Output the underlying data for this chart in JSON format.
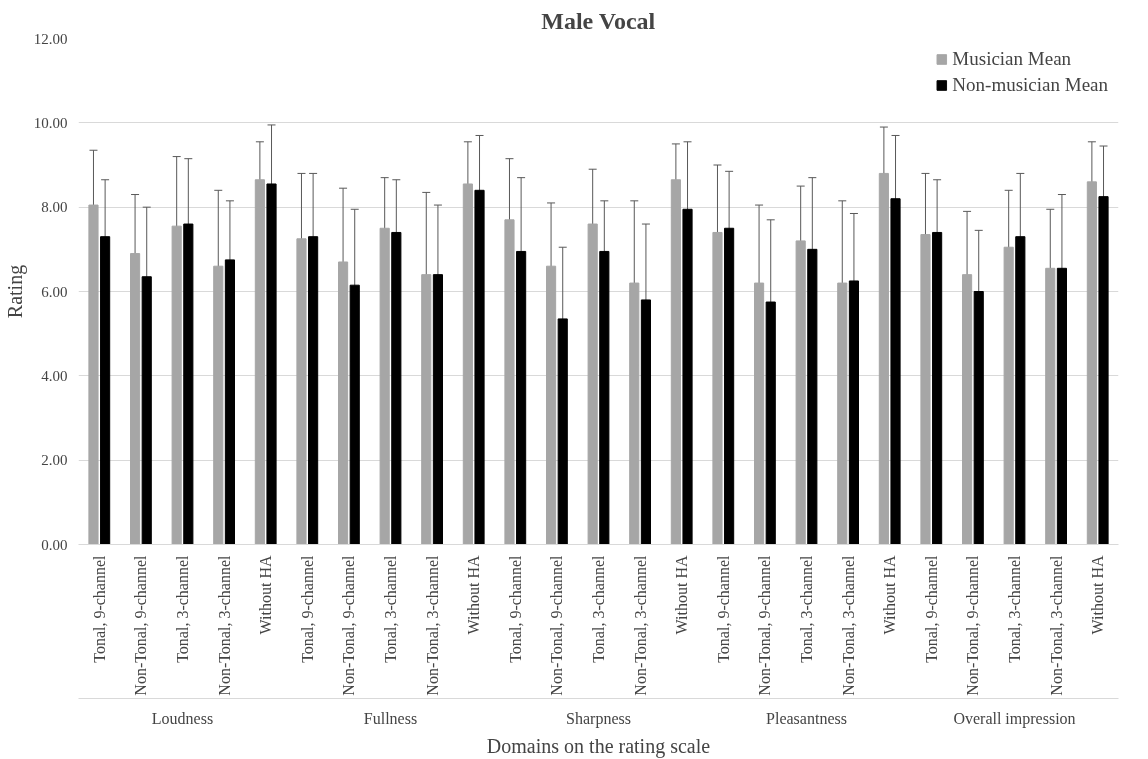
{
  "chart_data": {
    "type": "bar",
    "title": "Male Vocal",
    "xlabel": "Domains on the rating scale",
    "ylabel": "Rating",
    "categories": [
      "Tonal, 9-channel",
      "Non-Tonal, 9-channel",
      "Tonal, 3-channel",
      "Non-Tonal, 3-channel",
      "Without HA",
      "Tonal, 9-channel",
      "Non-Tonal, 9-channel",
      "Tonal, 3-channel",
      "Non-Tonal, 3-channel",
      "Without HA",
      "Tonal, 9-channel",
      "Non-Tonal, 9-channel",
      "Tonal, 3-channel",
      "Non-Tonal, 3-channel",
      "Without HA",
      "Tonal, 9-channel",
      "Non-Tonal, 9-channel",
      "Tonal, 3-channel",
      "Non-Tonal, 3-channel",
      "Without HA",
      "Tonal, 9-channel",
      "Non-Tonal, 9-channel",
      "Tonal, 3-channel",
      "Non-Tonal, 3-channel",
      "Without HA"
    ],
    "series": [
      {
        "name": "Musician Mean",
        "color": "#a6a6a6",
        "values": [
          8.05,
          6.9,
          7.55,
          6.6,
          8.65,
          7.25,
          6.7,
          7.5,
          6.4,
          8.55,
          7.7,
          6.6,
          7.6,
          6.2,
          8.65,
          7.4,
          6.2,
          7.2,
          6.2,
          8.8,
          7.35,
          6.4,
          7.05,
          6.55,
          8.6
        ],
        "errors": [
          1.3,
          1.4,
          1.65,
          1.8,
          0.9,
          1.55,
          1.75,
          1.2,
          1.95,
          1.0,
          1.45,
          1.5,
          1.3,
          1.95,
          0.85,
          1.6,
          1.85,
          1.3,
          1.95,
          1.1,
          1.45,
          1.5,
          1.35,
          1.4,
          0.95
        ]
      },
      {
        "name": "Non-musician Mean",
        "color": "#000000",
        "values": [
          7.3,
          6.35,
          7.6,
          6.75,
          8.55,
          7.3,
          6.15,
          7.4,
          6.4,
          8.4,
          6.95,
          5.35,
          6.95,
          5.8,
          7.95,
          7.5,
          5.75,
          7.0,
          6.25,
          8.2,
          7.4,
          6.0,
          7.3,
          6.55,
          8.25
        ],
        "errors": [
          1.35,
          1.65,
          1.55,
          1.4,
          1.4,
          1.5,
          1.8,
          1.25,
          1.65,
          1.3,
          1.75,
          1.7,
          1.2,
          1.8,
          1.6,
          1.35,
          1.95,
          1.7,
          1.6,
          1.5,
          1.25,
          1.45,
          1.5,
          1.75,
          1.2
        ]
      }
    ],
    "annotations": [
      "Loudness",
      "Fullness",
      "Sharpness",
      "Pleasantness",
      "Overall impression"
    ],
    "ylim": [
      0,
      12
    ],
    "yticks": [
      {
        "value": 0,
        "label": "0.00"
      },
      {
        "value": 2,
        "label": "2.00"
      },
      {
        "value": 4,
        "label": "4.00"
      },
      {
        "value": 6,
        "label": "6.00"
      },
      {
        "value": 8,
        "label": "8.00"
      },
      {
        "value": 10,
        "label": "10.00"
      },
      {
        "value": 12,
        "label": "12.00"
      }
    ],
    "grid": "y",
    "legend": "top right"
  }
}
